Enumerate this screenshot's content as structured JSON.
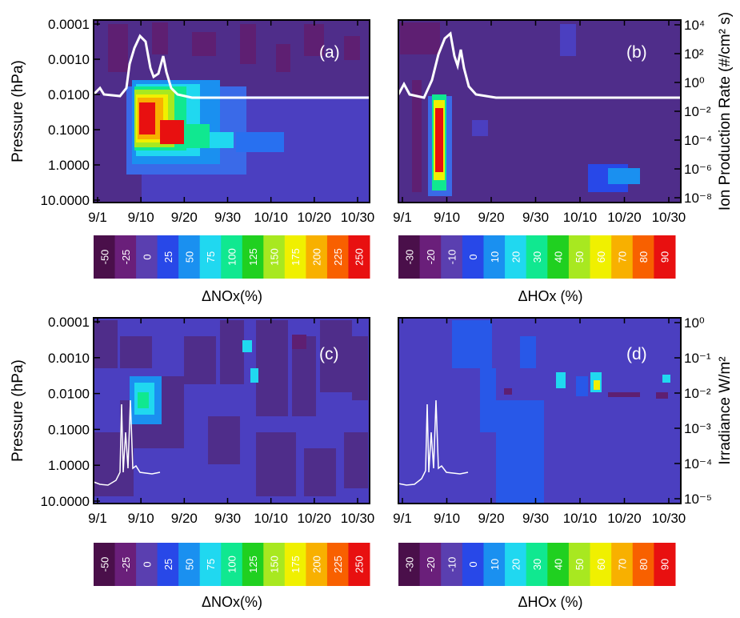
{
  "chart_data": [
    {
      "type": "heatmap",
      "panel_label": "(a)",
      "ylabel": "Pressure (hPa)",
      "y_ticks": [
        "0.0001",
        "0.0010",
        "0.0100",
        "0.1000",
        "1.0000",
        "10.0000"
      ],
      "x_ticks": [
        "9/1",
        "9/10",
        "9/20",
        "9/30",
        "10/10",
        "10/20",
        "10/30"
      ],
      "y_scale": "log",
      "overlay_line": "ion production rate (white)",
      "colorbar_title": "ΔNOx(%)",
      "colorbar_levels": [
        "-50",
        "-25",
        "0",
        "25",
        "50",
        "75",
        "100",
        "125",
        "150",
        "175",
        "200",
        "225",
        "250"
      ],
      "colorbar_colors": [
        "#4a0f4a",
        "#6a1f7a",
        "#5a3fb0",
        "#2848e8",
        "#1a90f0",
        "#20d8f0",
        "#10e890",
        "#20d020",
        "#a8e820",
        "#f0f000",
        "#f8b000",
        "#f86000",
        "#e81010"
      ]
    },
    {
      "type": "heatmap",
      "panel_label": "(b)",
      "ylabel_right": "Ion Production Rate (#/cm² s)",
      "right_ticks": [
        "10⁴",
        "10²",
        "10⁰",
        "10⁻²",
        "10⁻⁴",
        "10⁻⁶",
        "10⁻⁸"
      ],
      "x_ticks": [
        "9/1",
        "9/10",
        "9/20",
        "9/30",
        "10/10",
        "10/20",
        "10/30"
      ],
      "colorbar_title": "ΔHOx (%)",
      "colorbar_levels": [
        "-30",
        "-20",
        "-10",
        "0",
        "10",
        "20",
        "30",
        "40",
        "50",
        "60",
        "70",
        "80",
        "90"
      ],
      "colorbar_colors": [
        "#4a0f4a",
        "#6a1f7a",
        "#5a3fb0",
        "#2848e8",
        "#1a90f0",
        "#20d8f0",
        "#10e890",
        "#20d020",
        "#a8e820",
        "#f0f000",
        "#f8b000",
        "#f86000",
        "#e81010"
      ]
    },
    {
      "type": "heatmap",
      "panel_label": "(c)",
      "ylabel": "Pressure (hPa)",
      "y_ticks": [
        "0.0001",
        "0.0010",
        "0.0100",
        "0.1000",
        "1.0000",
        "10.0000"
      ],
      "x_ticks": [
        "9/1",
        "9/10",
        "9/20",
        "9/30",
        "10/10",
        "10/20",
        "10/30"
      ],
      "overlay_line": "irradiance (white)",
      "colorbar_title": "ΔNOx(%)",
      "colorbar_levels": [
        "-50",
        "-25",
        "0",
        "25",
        "50",
        "75",
        "100",
        "125",
        "150",
        "175",
        "200",
        "225",
        "250"
      ]
    },
    {
      "type": "heatmap",
      "panel_label": "(d)",
      "ylabel_right": "Irradiance W/m²",
      "right_ticks": [
        "10⁰",
        "10⁻¹",
        "10⁻²",
        "10⁻³",
        "10⁻⁴",
        "10⁻⁵"
      ],
      "x_ticks": [
        "9/1",
        "9/10",
        "9/20",
        "9/30",
        "10/10",
        "10/20",
        "10/30"
      ],
      "colorbar_title": "ΔHOx (%)",
      "colorbar_levels": [
        "-30",
        "-20",
        "-10",
        "0",
        "10",
        "20",
        "30",
        "40",
        "50",
        "60",
        "70",
        "80",
        "90"
      ]
    }
  ],
  "colors": {
    "purple_bg": "#4f2d8a",
    "dark_purple": "#5e1f72",
    "blue_bg": "#4b3fc0",
    "white_line": "#ffffff"
  }
}
